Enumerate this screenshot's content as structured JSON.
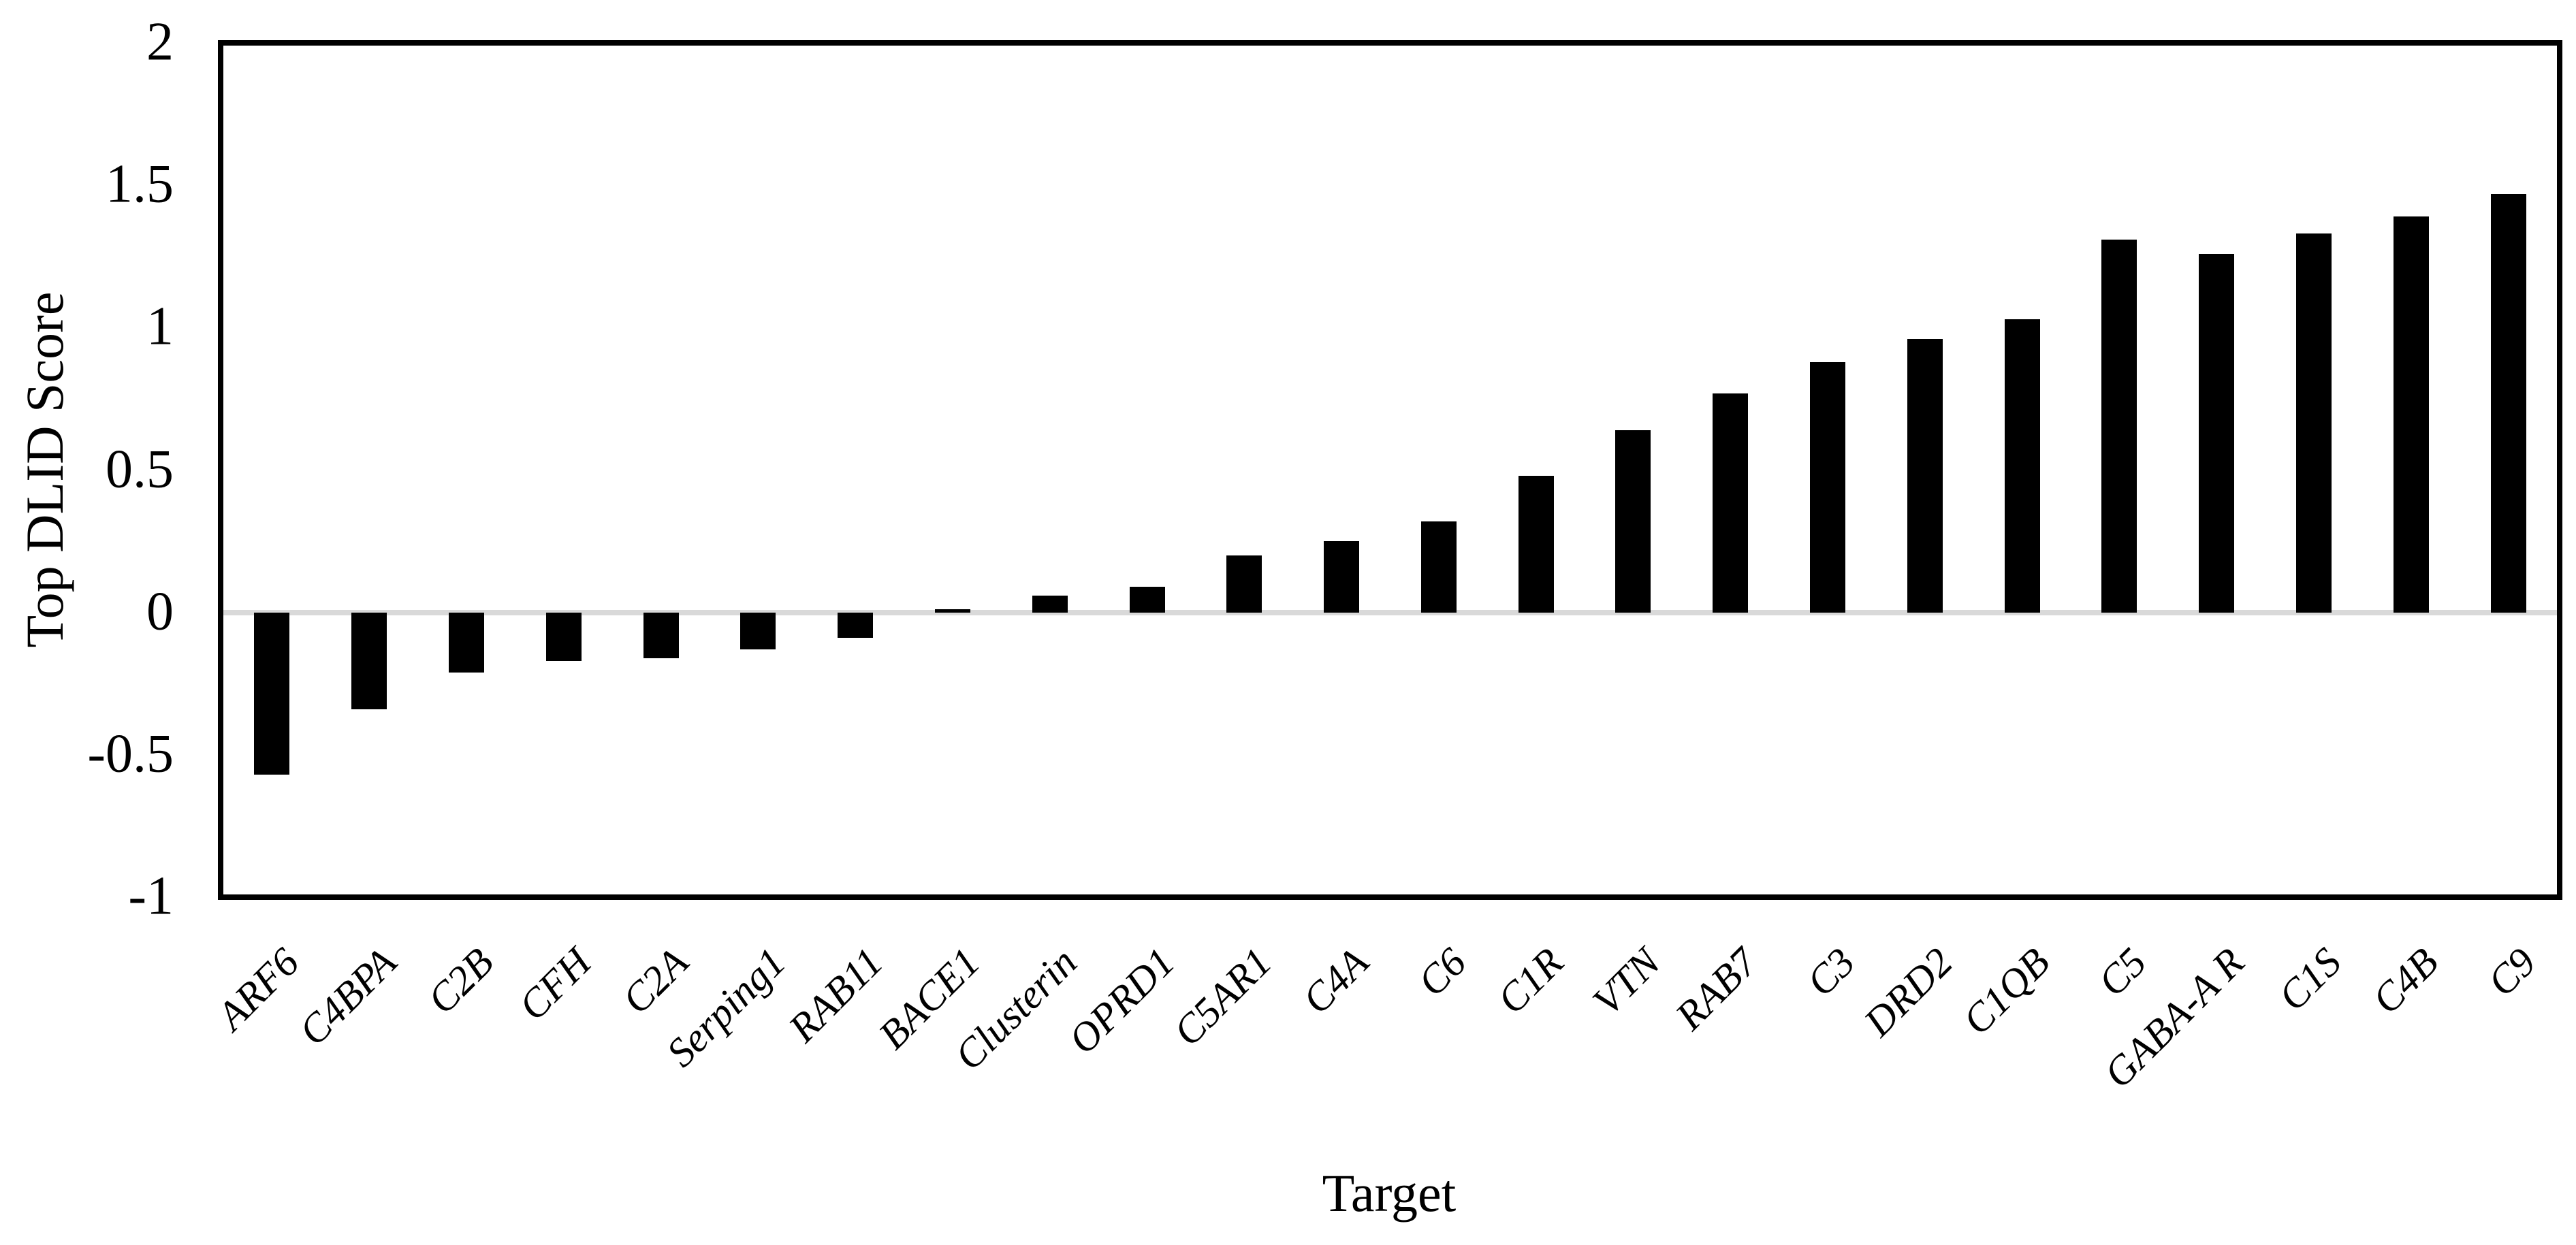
{
  "chart_data": {
    "type": "bar",
    "title": "",
    "xlabel": "Target",
    "ylabel": "Top DLID Score",
    "categories": [
      "ARF6",
      "C4BPA",
      "C2B",
      "CFH",
      "C2A",
      "Serping1",
      "RAB11",
      "BACE1",
      "Clusterin",
      "OPRD1",
      "C5AR1",
      "C4A",
      "C6",
      "C1R",
      "VTN",
      "RAB7",
      "C3",
      "DRD2",
      "C1QB",
      "C5",
      "GABA-A R",
      "C1S",
      "C4B",
      "C9"
    ],
    "values": [
      -0.57,
      -0.34,
      -0.21,
      -0.17,
      -0.16,
      -0.13,
      -0.09,
      0.01,
      0.06,
      0.09,
      0.2,
      0.25,
      0.32,
      0.48,
      0.64,
      0.77,
      0.88,
      0.96,
      1.03,
      1.31,
      1.26,
      1.33,
      1.39,
      1.47
    ],
    "ylim": [
      -1,
      2
    ],
    "y_tick_labels": [
      "2",
      "1.5",
      "1",
      "0.5",
      "0",
      "-0.5",
      "-1"
    ],
    "y_tick_values": [
      2,
      1.5,
      1,
      0.5,
      0,
      -0.5,
      -1
    ],
    "bar_color": "#000000",
    "zero_line_color": "#d9d9d9",
    "frame_color": "#000000",
    "background_color": "#ffffff",
    "legend": "none",
    "grid": "zero-line-only",
    "series_count": 1
  }
}
